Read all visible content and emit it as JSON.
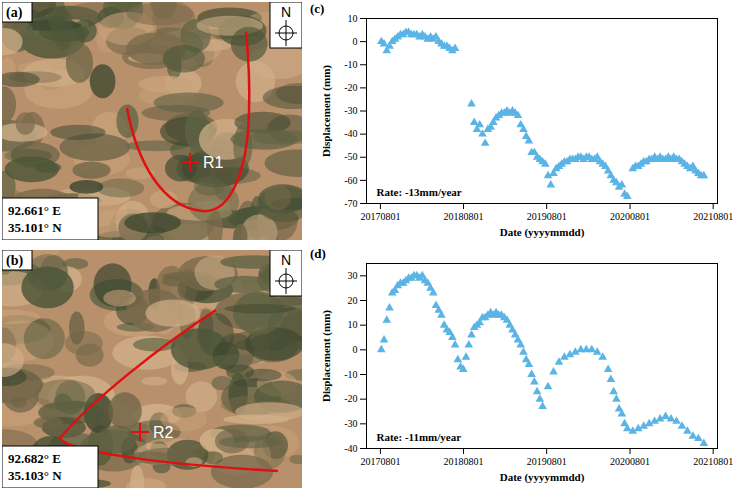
{
  "images": [
    {
      "panel": "(a)",
      "north": "N",
      "label": "R1",
      "coordinates": [
        "92.661° E",
        "35.101° N"
      ]
    },
    {
      "panel": "(b)",
      "north": "N",
      "label": "R2",
      "coordinates": [
        "92.682° E",
        "35.103° N"
      ]
    }
  ],
  "chart_data": [
    {
      "type": "scatter",
      "panel": "(c)",
      "annotation": "Rate: -13mm/year",
      "x_label": "Date (yyyymmdd)",
      "y_label": "Displacement (mm)",
      "color": "#5ab4e5",
      "marker": "triangle",
      "grid": false,
      "xlim": [
        "2017-06-01",
        "2021-08-20"
      ],
      "xticks": [
        {
          "value": "2017-08-01",
          "label": "20170801"
        },
        {
          "value": "2018-08-01",
          "label": "20180801"
        },
        {
          "value": "2019-08-01",
          "label": "20190801"
        },
        {
          "value": "2020-08-01",
          "label": "20200801"
        },
        {
          "value": "2021-08-01",
          "label": "20210801"
        }
      ],
      "ylim": [
        -70,
        10
      ],
      "yticks": [
        -70,
        -60,
        -50,
        -40,
        -30,
        -20,
        -10,
        0,
        10
      ],
      "x": [
        "2017-08-05",
        "2017-08-17",
        "2017-08-29",
        "2017-09-10",
        "2017-09-22",
        "2017-10-04",
        "2017-10-16",
        "2017-10-28",
        "2017-11-09",
        "2017-11-21",
        "2017-12-03",
        "2017-12-15",
        "2017-12-27",
        "2018-01-08",
        "2018-01-20",
        "2018-02-01",
        "2018-02-13",
        "2018-02-25",
        "2018-03-09",
        "2018-03-21",
        "2018-04-02",
        "2018-04-14",
        "2018-04-26",
        "2018-05-08",
        "2018-05-20",
        "2018-06-01",
        "2018-06-13",
        "2018-06-25",
        "2018-09-05",
        "2018-09-17",
        "2018-09-29",
        "2018-10-11",
        "2018-10-23",
        "2018-11-04",
        "2018-11-16",
        "2018-11-28",
        "2018-12-10",
        "2018-12-22",
        "2019-01-03",
        "2019-01-15",
        "2019-01-27",
        "2019-02-08",
        "2019-02-20",
        "2019-03-04",
        "2019-03-16",
        "2019-03-28",
        "2019-04-09",
        "2019-04-21",
        "2019-05-03",
        "2019-05-15",
        "2019-05-27",
        "2019-06-08",
        "2019-06-20",
        "2019-07-02",
        "2019-07-14",
        "2019-07-26",
        "2019-08-07",
        "2019-08-19",
        "2019-08-31",
        "2019-09-12",
        "2019-09-24",
        "2019-10-06",
        "2019-10-18",
        "2019-10-30",
        "2019-11-11",
        "2019-11-23",
        "2019-12-05",
        "2019-12-17",
        "2019-12-29",
        "2020-01-10",
        "2020-01-22",
        "2020-02-03",
        "2020-02-15",
        "2020-02-27",
        "2020-03-10",
        "2020-03-22",
        "2020-04-03",
        "2020-04-15",
        "2020-04-27",
        "2020-05-09",
        "2020-05-21",
        "2020-06-02",
        "2020-06-14",
        "2020-06-26",
        "2020-07-08",
        "2020-07-20",
        "2020-08-13",
        "2020-08-25",
        "2020-09-06",
        "2020-09-18",
        "2020-09-30",
        "2020-10-12",
        "2020-10-24",
        "2020-11-05",
        "2020-11-17",
        "2020-11-29",
        "2020-12-11",
        "2020-12-23",
        "2021-01-04",
        "2021-01-16",
        "2021-01-28",
        "2021-02-09",
        "2021-02-21",
        "2021-03-05",
        "2021-03-17",
        "2021-03-29",
        "2021-04-10",
        "2021-04-22",
        "2021-05-04",
        "2021-05-16",
        "2021-05-28",
        "2021-06-09",
        "2021-06-21"
      ],
      "values": [
        0,
        -1,
        -4,
        -2,
        0,
        1,
        2,
        3,
        3,
        4,
        4,
        3,
        3,
        3,
        2,
        3,
        2,
        1,
        2,
        1,
        2,
        0,
        -1,
        -2,
        -2,
        -3,
        -4,
        -3,
        -27,
        -35,
        -38,
        -36,
        -40,
        -44,
        -38,
        -37,
        -35,
        -33,
        -32,
        -31,
        -31,
        -30,
        -31,
        -30,
        -31,
        -32,
        -36,
        -38,
        -41,
        -43,
        -48,
        -48,
        -50,
        -51,
        -52,
        -53,
        -58,
        -62,
        -57,
        -55,
        -54,
        -53,
        -52,
        -52,
        -51,
        -51,
        -51,
        -50,
        -50,
        -51,
        -50,
        -50,
        -51,
        -51,
        -50,
        -52,
        -53,
        -54,
        -56,
        -58,
        -60,
        -61,
        -63,
        -62,
        -66,
        -67,
        -55,
        -54,
        -54,
        -53,
        -52,
        -52,
        -51,
        -51,
        -50,
        -51,
        -50,
        -51,
        -51,
        -50,
        -51,
        -50,
        -51,
        -51,
        -52,
        -53,
        -54,
        -55,
        -54,
        -56,
        -57,
        -58,
        -58
      ]
    },
    {
      "type": "scatter",
      "panel": "(d)",
      "annotation": "Rate: -11mm/year",
      "x_label": "Date (yyyymmdd)",
      "y_label": "Displacement (mm)",
      "color": "#5ab4e5",
      "marker": "triangle",
      "grid": false,
      "xlim": [
        "2017-06-01",
        "2021-08-20"
      ],
      "xticks": [
        {
          "value": "2017-08-01",
          "label": "20170801"
        },
        {
          "value": "2018-08-01",
          "label": "20180801"
        },
        {
          "value": "2019-08-01",
          "label": "20190801"
        },
        {
          "value": "2020-08-01",
          "label": "20200801"
        },
        {
          "value": "2021-08-01",
          "label": "20210801"
        }
      ],
      "ylim": [
        -40,
        35
      ],
      "yticks": [
        -40,
        -30,
        -20,
        -10,
        0,
        10,
        20,
        30
      ],
      "x": [
        "2017-08-05",
        "2017-08-17",
        "2017-08-29",
        "2017-09-10",
        "2017-09-22",
        "2017-10-04",
        "2017-10-16",
        "2017-10-28",
        "2017-11-09",
        "2017-11-21",
        "2017-12-03",
        "2017-12-15",
        "2017-12-27",
        "2018-01-08",
        "2018-01-20",
        "2018-02-01",
        "2018-02-13",
        "2018-02-25",
        "2018-03-09",
        "2018-03-21",
        "2018-04-02",
        "2018-04-14",
        "2018-04-26",
        "2018-05-08",
        "2018-05-20",
        "2018-06-01",
        "2018-06-13",
        "2018-06-25",
        "2018-07-07",
        "2018-07-19",
        "2018-07-31",
        "2018-08-12",
        "2018-08-24",
        "2018-09-05",
        "2018-09-17",
        "2018-09-29",
        "2018-10-11",
        "2018-10-23",
        "2018-11-04",
        "2018-11-16",
        "2018-11-28",
        "2018-12-10",
        "2018-12-22",
        "2019-01-03",
        "2019-01-15",
        "2019-01-27",
        "2019-02-08",
        "2019-02-20",
        "2019-03-04",
        "2019-03-16",
        "2019-03-28",
        "2019-04-09",
        "2019-04-21",
        "2019-05-03",
        "2019-05-15",
        "2019-05-27",
        "2019-06-08",
        "2019-06-20",
        "2019-07-02",
        "2019-07-14",
        "2019-08-07",
        "2019-08-31",
        "2019-09-24",
        "2019-10-18",
        "2019-11-11",
        "2019-12-05",
        "2019-12-29",
        "2020-01-22",
        "2020-02-15",
        "2020-03-10",
        "2020-04-03",
        "2020-04-27",
        "2020-05-09",
        "2020-05-21",
        "2020-06-02",
        "2020-06-14",
        "2020-06-26",
        "2020-07-08",
        "2020-07-20",
        "2020-08-13",
        "2020-09-06",
        "2020-09-30",
        "2020-10-24",
        "2020-11-17",
        "2020-12-11",
        "2021-01-04",
        "2021-01-28",
        "2021-02-21",
        "2021-03-17",
        "2021-04-10",
        "2021-05-04",
        "2021-05-28",
        "2021-06-21"
      ],
      "values": [
        0,
        4,
        12,
        17,
        23,
        24,
        26,
        27,
        27,
        28,
        29,
        29,
        30,
        30,
        29,
        30,
        28,
        27,
        25,
        23,
        18,
        16,
        14,
        10,
        8,
        7,
        5,
        2,
        -4,
        -7,
        -8,
        -3,
        2,
        6,
        9,
        10,
        11,
        13,
        13,
        14,
        15,
        14,
        15,
        14,
        14,
        13,
        12,
        10,
        8,
        6,
        4,
        2,
        -1,
        -4,
        -6,
        -10,
        -13,
        -17,
        -20,
        -23,
        -15,
        -9,
        -5,
        -3,
        -2,
        -1,
        0,
        0,
        0,
        -1,
        -3,
        -8,
        -12,
        -17,
        -20,
        -24,
        -26,
        -30,
        -32,
        -33,
        -32,
        -31,
        -30,
        -29,
        -28,
        -27,
        -28,
        -29,
        -31,
        -33,
        -35,
        -36,
        -38
      ]
    }
  ]
}
